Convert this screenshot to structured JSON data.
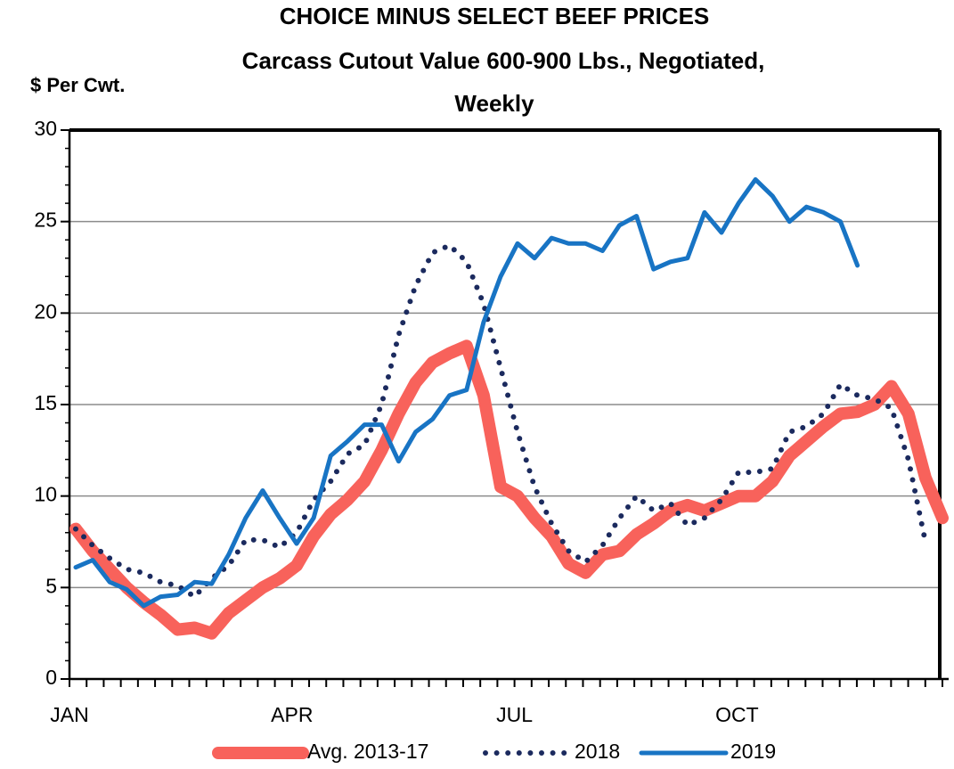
{
  "chart_data": {
    "type": "line",
    "title": "CHOICE MINUS SELECT BEEF PRICES",
    "subtitle": "Carcass Cutout Value 600-900 Lbs., Negotiated,",
    "subtitle2": "Weekly",
    "ylabel": "$ Per Cwt.",
    "categories": [
      "JAN",
      null,
      null,
      null,
      null,
      null,
      null,
      null,
      null,
      null,
      null,
      null,
      null,
      "APR",
      null,
      null,
      null,
      null,
      null,
      null,
      null,
      null,
      null,
      null,
      null,
      null,
      "JUL",
      null,
      null,
      null,
      null,
      null,
      null,
      null,
      null,
      null,
      null,
      null,
      null,
      "OCT",
      null,
      null,
      null,
      null,
      null,
      null,
      null,
      null,
      null,
      null,
      null,
      null
    ],
    "ylim": [
      0,
      30
    ],
    "yticks": [
      0,
      5,
      10,
      15,
      20,
      25,
      30
    ],
    "grid": true,
    "series": [
      {
        "name": "Avg. 2013-17",
        "color": "#f8625b",
        "linewidth": 14,
        "style": "solid",
        "values": [
          8.2,
          7.0,
          6.0,
          5.0,
          4.2,
          3.5,
          2.7,
          2.8,
          2.5,
          3.6,
          4.3,
          5.0,
          5.5,
          6.2,
          7.8,
          9.0,
          9.8,
          10.8,
          12.5,
          14.5,
          16.2,
          17.3,
          17.8,
          18.2,
          15.5,
          10.5,
          10.0,
          8.8,
          7.8,
          6.3,
          5.8,
          6.8,
          7.0,
          7.9,
          8.5,
          9.2,
          9.5,
          9.2,
          9.6,
          10.0,
          10.0,
          10.8,
          12.2,
          13.0,
          13.8,
          14.5,
          14.6,
          15.0,
          16.0,
          14.5,
          11.0,
          8.8
        ]
      },
      {
        "name": "2018",
        "color": "#1b2a5e",
        "linewidth": 6,
        "style": "dotted",
        "values": [
          8.2,
          7.3,
          6.6,
          6.0,
          5.8,
          5.3,
          5.1,
          4.5,
          5.5,
          6.2,
          7.6,
          7.6,
          7.2,
          8.0,
          9.8,
          10.8,
          12.3,
          12.8,
          15.0,
          18.8,
          21.5,
          23.3,
          23.7,
          22.8,
          20.5,
          17.0,
          13.5,
          10.5,
          8.5,
          7.0,
          6.4,
          7.3,
          8.8,
          10.0,
          9.2,
          9.6,
          8.4,
          8.8,
          9.8,
          11.3,
          11.3,
          11.5,
          13.5,
          13.8,
          14.5,
          16.1,
          15.5,
          15.3,
          14.8,
          12.0,
          7.5,
          null
        ]
      },
      {
        "name": "2019",
        "color": "#1874c4",
        "linewidth": 5,
        "style": "solid",
        "values": [
          6.1,
          6.5,
          5.3,
          4.9,
          4.0,
          4.5,
          4.6,
          5.3,
          5.2,
          6.8,
          8.8,
          10.3,
          8.8,
          7.4,
          8.8,
          12.2,
          13.0,
          13.9,
          13.9,
          11.9,
          13.5,
          14.2,
          15.5,
          15.8,
          19.5,
          22.0,
          23.8,
          23.0,
          24.1,
          23.8,
          23.8,
          23.4,
          24.8,
          25.3,
          22.4,
          22.8,
          23.0,
          25.5,
          24.4,
          26.0,
          27.3,
          26.4,
          25.0,
          25.8,
          25.5,
          25.0,
          22.6,
          null,
          null,
          null,
          null,
          null
        ]
      }
    ]
  }
}
